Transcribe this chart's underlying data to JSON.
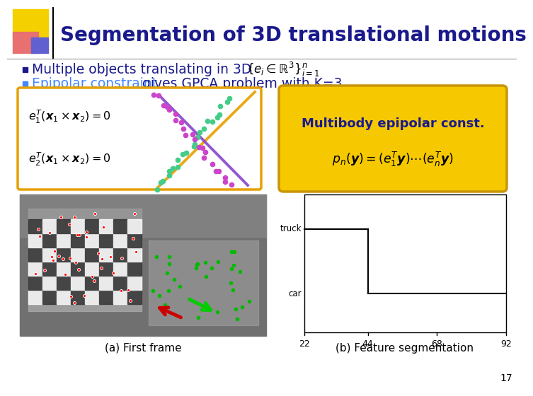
{
  "title": "Segmentation of 3D translational motions",
  "bullet1_plain": "Multiple objects translating in 3D",
  "bullet1_math": "$\\{e_i \\in \\mathbb{R}^3\\}^n_{i=1}$",
  "bullet2_colored": "Epipolar constraint",
  "bullet2_plain": " gives GPCA problem with K=3",
  "eq1": "$e_1^T(\\boldsymbol{x}_1 \\times \\boldsymbol{x}_2) = 0$",
  "eq2": "$e_2^T(\\boldsymbol{x}_1 \\times \\boldsymbol{x}_2) = 0$",
  "multibody_title": "Multibody epipolar const.",
  "multibody_eq": "$p_n(\\boldsymbol{y}) = (e_1^T\\boldsymbol{y})\\cdots(e_n^T\\boldsymbol{y})$",
  "caption_a": "(a) First frame",
  "caption_b": "(b) Feature segmentation",
  "title_color": "#1a1a8c",
  "bullet_color": "#1a1a8c",
  "epipolar_color": "#4488ff",
  "box1_edge": "#e6a000",
  "box2_bg": "#f5c800",
  "box2_edge": "#c8960a",
  "header_yellow": "#f5d000",
  "header_pink": "#e87070",
  "header_blue": "#6060d0",
  "bg_color": "#ffffff",
  "scatter_color1": "#cc44cc",
  "scatter_color2": "#44cc88",
  "line_orange": "#e8a000",
  "line_purple": "#8844cc",
  "page_num": "17",
  "xtick_labels": [
    "22",
    "44",
    "68",
    "92"
  ]
}
